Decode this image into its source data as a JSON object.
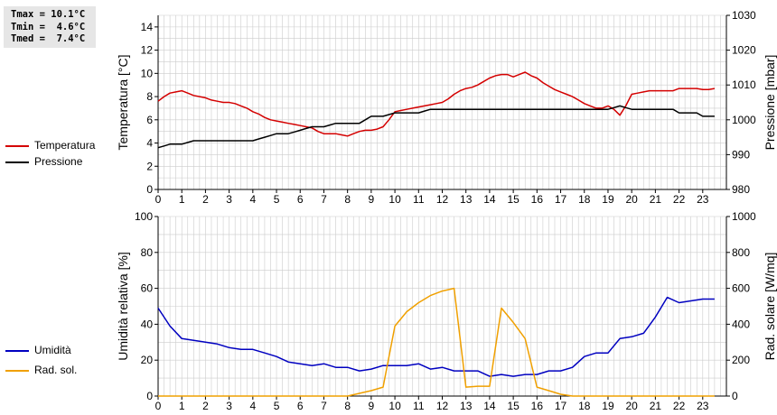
{
  "stats": {
    "tmax": "Tmax = 10.1°C",
    "tmin": "Tmin =  4.6°C",
    "tmed": "Tmed =  7.4°C"
  },
  "legend": {
    "temperature": "Temperatura",
    "pressure": "Pressione",
    "humidity": "Umidità",
    "radiation": "Rad. sol."
  },
  "colors": {
    "temperature": "#d40000",
    "pressure": "#000000",
    "humidity": "#0000c0",
    "radiation": "#f0a000",
    "grid": "#cccccc"
  },
  "chart_data": [
    {
      "type": "line",
      "title": "",
      "xlabel": "",
      "ylabel": "Temperatura [°C]",
      "y2label": "Pressione [mbar]",
      "xlim": [
        0,
        24
      ],
      "ylim": [
        0,
        15
      ],
      "y2lim": [
        980,
        1030
      ],
      "x_ticks": [
        0,
        1,
        2,
        3,
        4,
        5,
        6,
        7,
        8,
        9,
        10,
        11,
        12,
        13,
        14,
        15,
        16,
        17,
        18,
        19,
        20,
        21,
        22,
        23
      ],
      "y_ticks": [
        0,
        2,
        4,
        6,
        8,
        10,
        12,
        14
      ],
      "y2_ticks": [
        980,
        990,
        1000,
        1010,
        1020,
        1030
      ],
      "grid": true,
      "series": [
        {
          "name": "Temperatura",
          "axis": "left",
          "x": [
            0,
            0.25,
            0.5,
            0.75,
            1,
            1.25,
            1.5,
            1.75,
            2,
            2.25,
            2.5,
            2.75,
            3,
            3.25,
            3.5,
            3.75,
            4,
            4.25,
            4.5,
            4.75,
            5,
            5.25,
            5.5,
            5.75,
            6,
            6.25,
            6.5,
            6.75,
            7,
            7.25,
            7.5,
            7.75,
            8,
            8.25,
            8.5,
            8.75,
            9,
            9.25,
            9.5,
            9.75,
            10,
            10.25,
            10.5,
            10.75,
            11,
            11.25,
            11.5,
            11.75,
            12,
            12.25,
            12.5,
            12.75,
            13,
            13.25,
            13.5,
            13.75,
            14,
            14.25,
            14.5,
            14.75,
            15,
            15.25,
            15.5,
            15.75,
            16,
            16.25,
            16.5,
            16.75,
            17,
            17.25,
            17.5,
            17.75,
            18,
            18.25,
            18.5,
            18.75,
            19,
            19.25,
            19.5,
            19.75,
            20,
            20.25,
            20.5,
            20.75,
            21,
            21.25,
            21.5,
            21.75,
            22,
            22.25,
            22.5,
            22.75,
            23,
            23.25,
            23.5
          ],
          "values": [
            7.6,
            8,
            8.3,
            8.4,
            8.5,
            8.3,
            8.1,
            8,
            7.9,
            7.7,
            7.6,
            7.5,
            7.5,
            7.4,
            7.2,
            7,
            6.7,
            6.5,
            6.2,
            6,
            5.9,
            5.8,
            5.7,
            5.6,
            5.5,
            5.4,
            5.3,
            5,
            4.8,
            4.8,
            4.8,
            4.7,
            4.6,
            4.8,
            5,
            5.1,
            5.1,
            5.2,
            5.4,
            6,
            6.7,
            6.8,
            6.9,
            7,
            7.1,
            7.2,
            7.3,
            7.4,
            7.5,
            7.8,
            8.2,
            8.5,
            8.7,
            8.8,
            9,
            9.3,
            9.6,
            9.8,
            9.9,
            9.9,
            9.7,
            9.9,
            10.1,
            9.8,
            9.6,
            9.2,
            8.9,
            8.6,
            8.4,
            8.2,
            8,
            7.7,
            7.4,
            7.2,
            7,
            7.0,
            7.2,
            6.9,
            6.4,
            7.2,
            8.2,
            8.3,
            8.4,
            8.5,
            8.5,
            8.5,
            8.5,
            8.5,
            8.7,
            8.7,
            8.7,
            8.7,
            8.6,
            8.6,
            8.7
          ]
        },
        {
          "name": "Pressione",
          "axis": "right",
          "x": [
            0,
            0.25,
            0.5,
            0.75,
            1,
            1.25,
            1.5,
            1.75,
            2,
            2.25,
            2.5,
            2.75,
            3,
            3.25,
            3.5,
            3.75,
            4,
            4.25,
            4.5,
            4.75,
            5,
            5.25,
            5.5,
            5.75,
            6,
            6.25,
            6.5,
            6.75,
            7,
            7.25,
            7.5,
            7.75,
            8,
            8.25,
            8.5,
            8.75,
            9,
            9.25,
            9.5,
            9.75,
            10,
            10.25,
            10.5,
            10.75,
            11,
            11.25,
            11.5,
            11.75,
            12,
            12.25,
            12.5,
            12.75,
            13,
            13.25,
            13.5,
            13.75,
            14,
            14.25,
            14.5,
            14.75,
            15,
            15.25,
            15.5,
            15.75,
            16,
            16.25,
            16.5,
            16.75,
            17,
            17.25,
            17.5,
            17.75,
            18,
            18.25,
            18.5,
            18.75,
            19,
            19.25,
            19.5,
            19.75,
            20,
            20.25,
            20.5,
            20.75,
            21,
            21.25,
            21.5,
            21.75,
            22,
            22.25,
            22.5,
            22.75,
            23,
            23.25,
            23.5
          ],
          "values": [
            992,
            992.5,
            993,
            993,
            993,
            993.5,
            994,
            994,
            994,
            994,
            994,
            994,
            994,
            994,
            994,
            994,
            994,
            994.5,
            995,
            995.5,
            996,
            996,
            996,
            996.5,
            997,
            997.5,
            998,
            998,
            998,
            998.5,
            999,
            999,
            999,
            999,
            999,
            1000,
            1001,
            1001,
            1001,
            1001.5,
            1002,
            1002,
            1002,
            1002,
            1002,
            1002.5,
            1003,
            1003,
            1003,
            1003,
            1003,
            1003,
            1003,
            1003,
            1003,
            1003,
            1003,
            1003,
            1003,
            1003,
            1003,
            1003,
            1003,
            1003,
            1003,
            1003,
            1003,
            1003,
            1003,
            1003,
            1003,
            1003,
            1003,
            1003,
            1003,
            1003,
            1003,
            1003.5,
            1004,
            1003.5,
            1003,
            1003,
            1003,
            1003,
            1003,
            1003,
            1003,
            1003,
            1002,
            1002,
            1002,
            1002,
            1001,
            1001,
            1001
          ]
        }
      ]
    },
    {
      "type": "line",
      "title": "",
      "xlabel": "",
      "ylabel": "Umidità relativa [%]",
      "y2label": "Rad. solare [W/mq]",
      "xlim": [
        0,
        24
      ],
      "ylim": [
        0,
        100
      ],
      "y2lim": [
        0,
        1000
      ],
      "x_ticks": [
        0,
        1,
        2,
        3,
        4,
        5,
        6,
        7,
        8,
        9,
        10,
        11,
        12,
        13,
        14,
        15,
        16,
        17,
        18,
        19,
        20,
        21,
        22,
        23
      ],
      "y_ticks": [
        0,
        20,
        40,
        60,
        80,
        100
      ],
      "y2_ticks": [
        0,
        200,
        400,
        600,
        800,
        1000
      ],
      "grid": true,
      "series": [
        {
          "name": "Umidità",
          "axis": "left",
          "x": [
            0,
            0.5,
            1,
            1.5,
            2,
            2.5,
            3,
            3.5,
            4,
            4.5,
            5,
            5.5,
            6,
            6.5,
            7,
            7.5,
            8,
            8.5,
            9,
            9.5,
            10,
            10.5,
            11,
            11.5,
            12,
            12.5,
            13,
            13.5,
            14,
            14.5,
            15,
            15.5,
            16,
            16.5,
            17,
            17.5,
            18,
            18.5,
            19,
            19.5,
            20,
            20.5,
            21,
            21.5,
            22,
            22.5,
            23,
            23.5
          ],
          "values": [
            49,
            39,
            32,
            31,
            30,
            29,
            27,
            26,
            26,
            24,
            22,
            19,
            18,
            17,
            18,
            16,
            16,
            14,
            15,
            17,
            17,
            17,
            18,
            15,
            16,
            14,
            14,
            14,
            11,
            12,
            11,
            12,
            12,
            14,
            14,
            16,
            22,
            24,
            24,
            32,
            33,
            35,
            44,
            55,
            52,
            53,
            54,
            54
          ]
        },
        {
          "name": "Rad. sol.",
          "axis": "right",
          "x": [
            0,
            1,
            2,
            3,
            4,
            5,
            6,
            7,
            7.5,
            8,
            8.5,
            9,
            9.5,
            10,
            10.5,
            11,
            11.5,
            12,
            12.5,
            13,
            13.5,
            14,
            14.5,
            15,
            15.5,
            16,
            16.5,
            17,
            17.5,
            18,
            19,
            20,
            21,
            22,
            23,
            23.5
          ],
          "values": [
            0,
            0,
            0,
            0,
            0,
            0,
            0,
            0,
            0,
            0,
            15,
            30,
            50,
            390,
            470,
            520,
            560,
            585,
            600,
            50,
            55,
            55,
            490,
            410,
            320,
            50,
            30,
            10,
            0,
            0,
            0,
            0,
            0,
            0,
            0,
            0
          ]
        }
      ]
    }
  ]
}
